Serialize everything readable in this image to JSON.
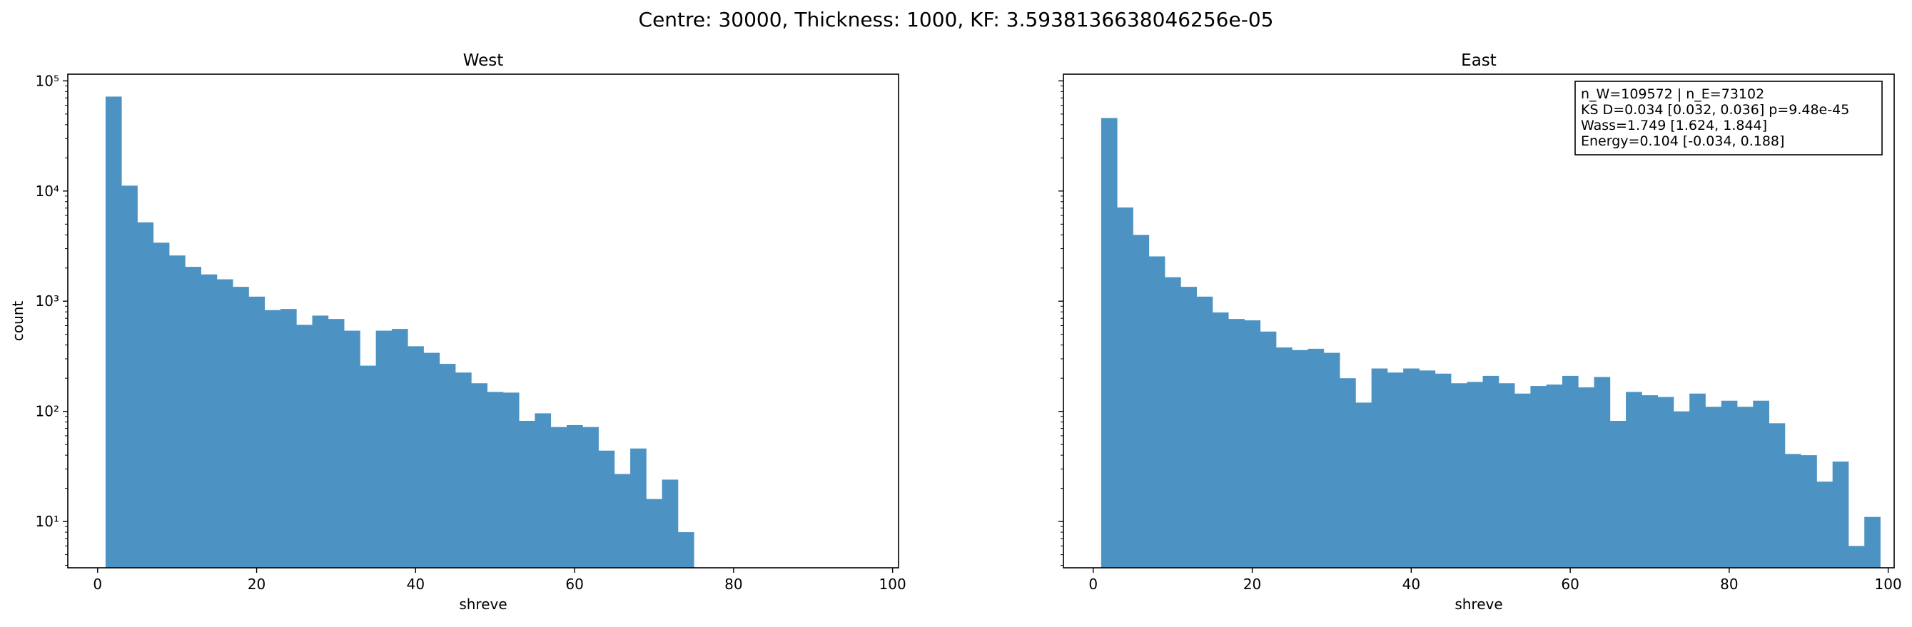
{
  "suptitle": "Centre: 30000, Thickness: 1000, KF: 3.5938136638046256e-05",
  "chart_data": [
    {
      "type": "bar",
      "title": "West",
      "xlabel": "shreve",
      "ylabel": "count",
      "yscale": "log",
      "xlim": [
        -3.75,
        100.75
      ],
      "ylim": [
        3.8,
        115000
      ],
      "xticks": [
        0,
        20,
        40,
        60,
        80,
        100
      ],
      "xtick_labels": [
        "0",
        "20",
        "40",
        "60",
        "80",
        "100"
      ],
      "yticks": [
        10,
        100,
        1000,
        10000,
        100000
      ],
      "ytick_labels": [
        "10¹",
        "10²",
        "10³",
        "10⁴",
        "10⁵"
      ],
      "bin_edges_start": 1,
      "bin_width": 2,
      "color": "#4c93c3",
      "values": [
        72000,
        11200,
        5200,
        3400,
        2600,
        2050,
        1750,
        1580,
        1350,
        1100,
        830,
        850,
        610,
        740,
        690,
        540,
        260,
        540,
        560,
        390,
        340,
        270,
        225,
        180,
        150,
        148,
        82,
        96,
        72,
        75,
        72,
        44,
        27,
        46,
        16,
        24,
        8
      ],
      "annotation": []
    },
    {
      "type": "bar",
      "title": "East",
      "xlabel": "shreve",
      "ylabel": "",
      "yscale": "log",
      "xlim": [
        -3.75,
        100.75
      ],
      "ylim": [
        3.8,
        115000
      ],
      "xticks": [
        0,
        20,
        40,
        60,
        80,
        100
      ],
      "xtick_labels": [
        "0",
        "20",
        "40",
        "60",
        "80",
        "100"
      ],
      "bin_edges_start": 1,
      "bin_width": 2,
      "color": "#4c93c3",
      "values": [
        46000,
        7100,
        4000,
        2550,
        1650,
        1350,
        1100,
        790,
        690,
        670,
        530,
        380,
        360,
        370,
        340,
        200,
        120,
        245,
        225,
        245,
        235,
        220,
        180,
        185,
        210,
        180,
        145,
        170,
        175,
        210,
        165,
        205,
        82,
        150,
        140,
        135,
        100,
        145,
        110,
        125,
        110,
        125,
        78,
        41,
        40,
        23,
        35,
        6,
        11
      ],
      "annotation": [
        "n_W=109572 | n_E=73102",
        "KS D=0.034 [0.032, 0.036]  p=9.48e-45",
        "Wass=1.749 [1.624, 1.844]",
        "Energy=0.104 [-0.034, 0.188]"
      ]
    }
  ]
}
